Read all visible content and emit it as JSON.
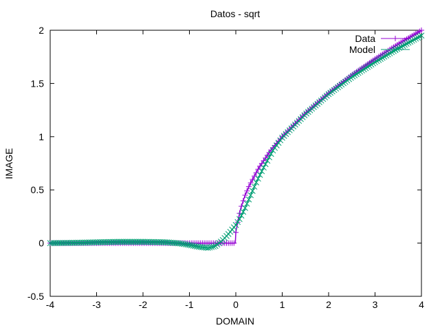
{
  "chart_data": {
    "type": "line",
    "title": "Datos - sqrt",
    "xlabel": "DOMAIN",
    "ylabel": "IMAGE",
    "xlim": [
      -4,
      4
    ],
    "ylim": [
      -0.5,
      2
    ],
    "x_ticks": [
      -4,
      -3,
      -2,
      -1,
      0,
      1,
      2,
      3,
      4
    ],
    "x_tick_labels": [
      "-4",
      "-3",
      "-2",
      "-1",
      "0",
      "1",
      "2",
      "3",
      "4"
    ],
    "y_ticks": [
      -0.5,
      0,
      0.5,
      1,
      1.5,
      2
    ],
    "y_tick_labels": [
      "-0.5",
      "0",
      "0.5",
      "1",
      "1.5",
      "2"
    ],
    "grid": false,
    "legend_position": "top-right",
    "series": [
      {
        "name": "Data",
        "color": "#9400d3",
        "marker": "plus",
        "x": [
          -4,
          -3.5,
          -3,
          -2.5,
          -2,
          -1.5,
          -1,
          -0.5,
          -0.01,
          0,
          0.05,
          0.1,
          0.2,
          0.3,
          0.5,
          0.75,
          1,
          1.5,
          2,
          2.5,
          3,
          3.5,
          4
        ],
        "y": [
          0,
          0,
          0,
          0,
          0,
          0,
          0,
          0,
          0,
          0.1,
          0.22,
          0.32,
          0.45,
          0.55,
          0.71,
          0.87,
          1.0,
          1.22,
          1.41,
          1.58,
          1.73,
          1.87,
          2.0
        ]
      },
      {
        "name": "Model",
        "color": "#009e73",
        "marker": "cross",
        "x": [
          -4,
          -3.5,
          -3,
          -2.5,
          -2,
          -1.5,
          -1.2,
          -1,
          -0.8,
          -0.6,
          -0.45,
          -0.3,
          -0.15,
          0,
          0.1,
          0.2,
          0.3,
          0.45,
          0.6,
          0.8,
          1,
          1.5,
          2,
          2.5,
          3,
          3.5,
          4
        ],
        "y": [
          0,
          0.003,
          0.008,
          0.012,
          0.012,
          0.008,
          -0.003,
          -0.018,
          -0.035,
          -0.045,
          -0.03,
          0.02,
          0.09,
          0.17,
          0.24,
          0.33,
          0.43,
          0.58,
          0.71,
          0.87,
          0.99,
          1.21,
          1.4,
          1.56,
          1.7,
          1.83,
          1.95
        ]
      }
    ]
  }
}
